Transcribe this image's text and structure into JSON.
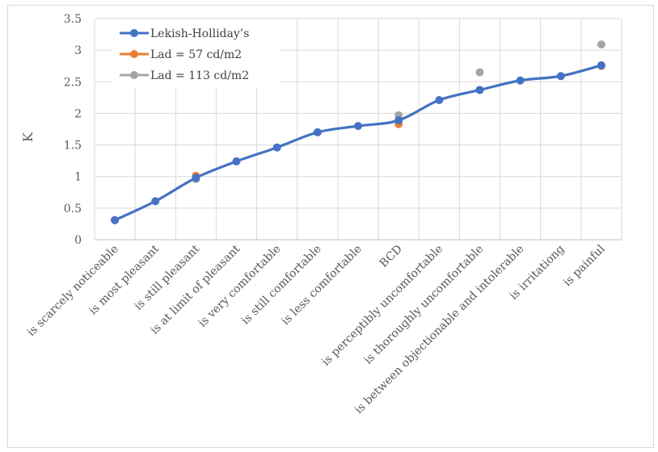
{
  "chart_data": {
    "type": "line",
    "title": "",
    "xlabel": "",
    "ylabel": "K",
    "ylim": [
      0,
      3.5
    ],
    "yticks": [
      "0",
      "0.5",
      "1",
      "1.5",
      "2",
      "2.5",
      "3",
      "3.5"
    ],
    "grid": true,
    "legend_position": "top-left",
    "categories": [
      "is scarcely noticeable",
      "is most pleasant",
      "is still pleasant",
      "is at limit of pleasant",
      "is very comfortable",
      "is still comfortable",
      "is less comfortable",
      "BCD",
      "is perceptibly uncomfortable",
      "is thoroughly uncomfortable",
      "is between objectionable and intolerable",
      "is irritationg",
      "is painful"
    ],
    "series": [
      {
        "name": "Lekish-Holliday's",
        "display_name": "Lekish-Holliday’s",
        "style": "line-markers",
        "color": "#4472c4",
        "values": [
          0.31,
          0.61,
          0.98,
          1.24,
          1.46,
          1.7,
          1.8,
          1.89,
          2.21,
          2.37,
          2.52,
          2.59,
          2.76
        ]
      },
      {
        "name": "Lad = 57 cd/m2",
        "style": "markers",
        "color": "#ed7d31",
        "values": [
          0.31,
          null,
          1.01,
          null,
          null,
          null,
          null,
          1.83,
          null,
          2.37,
          null,
          null,
          2.75
        ]
      },
      {
        "name": "Lad = 113  cd/m2",
        "style": "markers",
        "color": "#a5a5a5",
        "values": [
          0.31,
          null,
          0.96,
          null,
          null,
          null,
          null,
          1.97,
          null,
          2.65,
          null,
          null,
          3.09
        ]
      }
    ]
  }
}
